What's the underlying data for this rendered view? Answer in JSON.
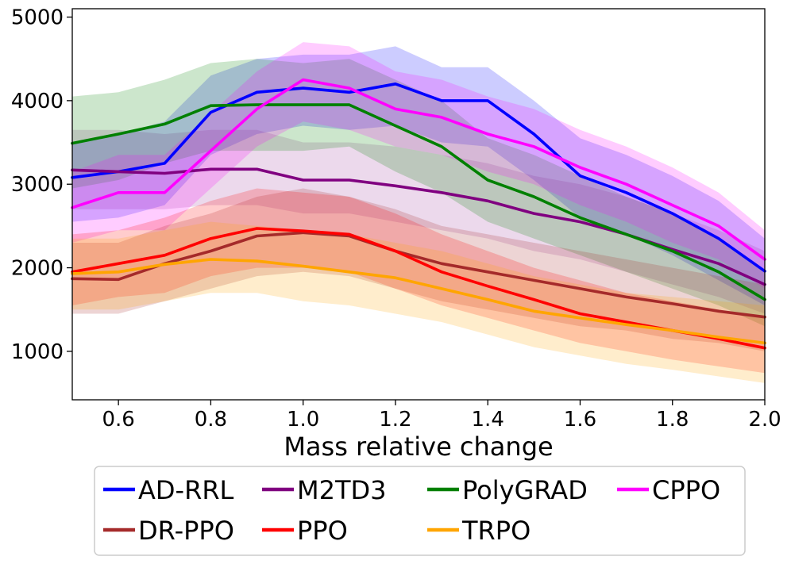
{
  "chart_data": {
    "type": "line",
    "title": "",
    "xlabel": "Mass relative change",
    "ylabel": "",
    "xlim": [
      0.5,
      2.0
    ],
    "ylim": [
      420,
      5100
    ],
    "xticks": [
      0.6,
      0.8,
      1.0,
      1.2,
      1.4,
      1.6,
      1.8,
      2.0
    ],
    "xtick_labels": [
      "0.6",
      "0.8",
      "1.0",
      "1.2",
      "1.4",
      "1.6",
      "1.8",
      "2.0"
    ],
    "yticks": [
      1000,
      2000,
      3000,
      4000,
      5000
    ],
    "ytick_labels": [
      "1000",
      "2000",
      "3000",
      "4000",
      "5000"
    ],
    "x": [
      0.5,
      0.6,
      0.7,
      0.8,
      0.9,
      1.0,
      1.1,
      1.2,
      1.3,
      1.4,
      1.5,
      1.6,
      1.7,
      1.8,
      1.9,
      2.0
    ],
    "legend_position": "below",
    "series": [
      {
        "name": "AD-RRL",
        "color": "#0000ff",
        "band_opacity": 0.2,
        "values": [
          3080,
          3150,
          3250,
          3860,
          4100,
          4150,
          4100,
          4200,
          4000,
          4000,
          3600,
          3100,
          2900,
          2650,
          2350,
          1960
        ],
        "lower": [
          2550,
          2600,
          2750,
          3350,
          3600,
          3700,
          3650,
          3700,
          3500,
          3450,
          3050,
          2600,
          2400,
          2150,
          1850,
          1550
        ],
        "upper": [
          3500,
          3600,
          3750,
          4300,
          4500,
          4550,
          4550,
          4650,
          4400,
          4400,
          4000,
          3550,
          3350,
          3100,
          2800,
          2350
        ]
      },
      {
        "name": "M2TD3",
        "color": "#800080",
        "band_opacity": 0.15,
        "values": [
          3170,
          3150,
          3130,
          3180,
          3180,
          3050,
          3050,
          2980,
          2900,
          2800,
          2650,
          2550,
          2400,
          2220,
          2050,
          1800
        ],
        "lower": [
          2700,
          2700,
          2700,
          2750,
          2750,
          2650,
          2650,
          2550,
          2450,
          2350,
          2200,
          2100,
          1950,
          1800,
          1650,
          1450
        ],
        "upper": [
          3650,
          3650,
          3600,
          3650,
          3650,
          3500,
          3500,
          3450,
          3350,
          3250,
          3100,
          3000,
          2850,
          2650,
          2450,
          2200
        ]
      },
      {
        "name": "PolyGRAD",
        "color": "#008000",
        "band_opacity": 0.2,
        "values": [
          3490,
          3600,
          3720,
          3940,
          3950,
          3950,
          3950,
          3700,
          3450,
          3050,
          2850,
          2600,
          2400,
          2200,
          1950,
          1620
        ],
        "lower": [
          2950,
          3050,
          3250,
          3400,
          3400,
          3400,
          3450,
          3150,
          2900,
          2550,
          2350,
          2150,
          1950,
          1750,
          1550,
          1300
        ],
        "upper": [
          4050,
          4100,
          4250,
          4450,
          4500,
          4450,
          4500,
          4250,
          4000,
          3550,
          3350,
          3100,
          2850,
          2650,
          2350,
          1950
        ]
      },
      {
        "name": "CPPO",
        "color": "#ff00ff",
        "band_opacity": 0.2,
        "values": [
          2720,
          2900,
          2900,
          3400,
          3900,
          4250,
          4150,
          3900,
          3800,
          3600,
          3450,
          3200,
          3000,
          2750,
          2500,
          2100
        ],
        "lower": [
          2300,
          2450,
          2450,
          2950,
          3450,
          3750,
          3650,
          3450,
          3350,
          3150,
          3000,
          2750,
          2550,
          2300,
          2100,
          1750
        ],
        "upper": [
          3150,
          3350,
          3350,
          3850,
          4350,
          4700,
          4650,
          4350,
          4250,
          4050,
          3900,
          3650,
          3450,
          3200,
          2900,
          2450
        ]
      },
      {
        "name": "DR-PPO",
        "color": "#a52a2a",
        "band_opacity": 0.2,
        "values": [
          1870,
          1860,
          2050,
          2200,
          2380,
          2420,
          2380,
          2200,
          2050,
          1950,
          1850,
          1750,
          1650,
          1570,
          1480,
          1410
        ],
        "lower": [
          1450,
          1450,
          1600,
          1750,
          1900,
          1950,
          1900,
          1750,
          1600,
          1500,
          1400,
          1300,
          1250,
          1150,
          1100,
          1000
        ],
        "upper": [
          2300,
          2300,
          2500,
          2650,
          2850,
          2950,
          2850,
          2700,
          2500,
          2400,
          2300,
          2200,
          2100,
          2000,
          1900,
          1800
        ]
      },
      {
        "name": "PPO",
        "color": "#ff0000",
        "band_opacity": 0.2,
        "values": [
          1950,
          2050,
          2150,
          2350,
          2470,
          2440,
          2400,
          2200,
          1950,
          1780,
          1620,
          1450,
          1350,
          1250,
          1150,
          1040
        ],
        "lower": [
          1550,
          1650,
          1700,
          1900,
          2000,
          2000,
          1950,
          1750,
          1550,
          1400,
          1250,
          1100,
          1000,
          900,
          820,
          740
        ],
        "upper": [
          2400,
          2450,
          2600,
          2800,
          2950,
          2900,
          2850,
          2650,
          2400,
          2200,
          2000,
          1850,
          1700,
          1600,
          1500,
          1400
        ]
      },
      {
        "name": "TRPO",
        "color": "#ffa500",
        "band_opacity": 0.2,
        "values": [
          1930,
          1950,
          2040,
          2100,
          2080,
          2020,
          1950,
          1880,
          1750,
          1620,
          1480,
          1400,
          1320,
          1250,
          1170,
          1100
        ],
        "lower": [
          1500,
          1500,
          1600,
          1700,
          1700,
          1600,
          1550,
          1450,
          1350,
          1200,
          1050,
          950,
          850,
          780,
          700,
          620
        ],
        "upper": [
          2350,
          2350,
          2450,
          2550,
          2500,
          2450,
          2400,
          2300,
          2200,
          2050,
          1900,
          1800,
          1700,
          1650,
          1600,
          1550
        ]
      }
    ]
  }
}
